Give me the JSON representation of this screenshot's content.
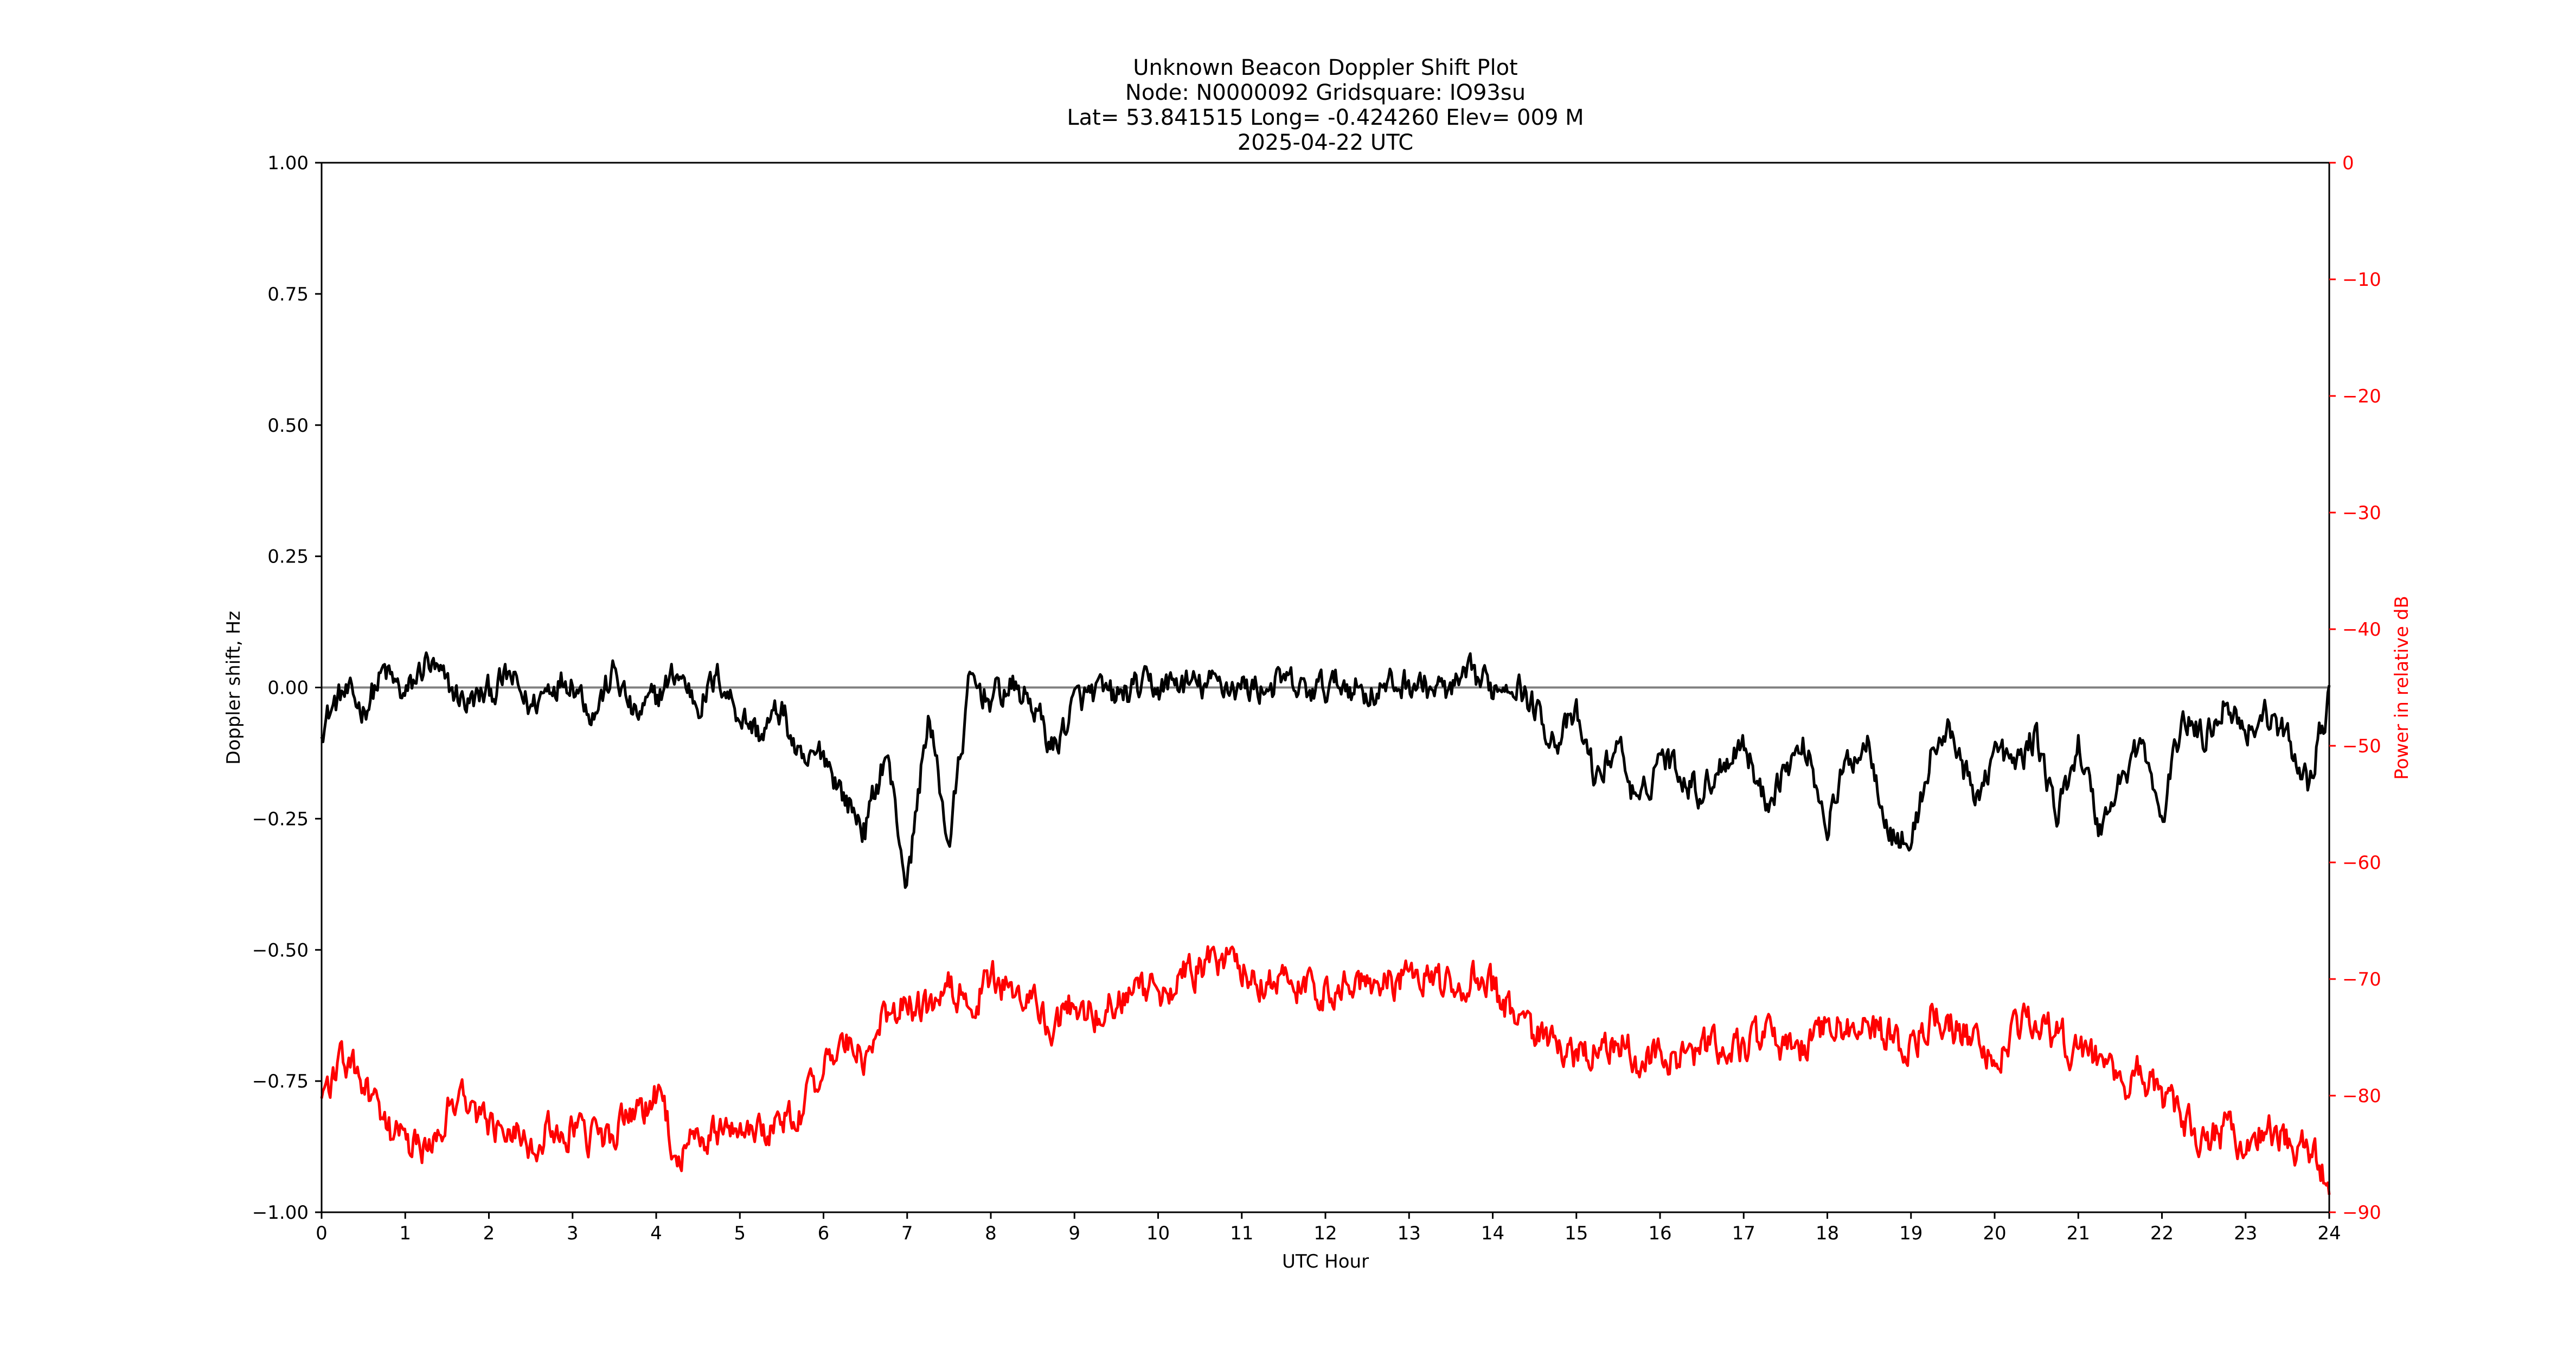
{
  "chart_data": {
    "type": "line",
    "title_lines": [
      "Unknown Beacon Doppler Shift Plot",
      "Node:  N0000092     Gridsquare:  IO93su",
      "Lat= 53.841515    Long= -0.424260    Elev= 009 M",
      "2025-04-22  UTC"
    ],
    "xlabel": "UTC Hour",
    "ylabel": "Doppler shift, Hz",
    "y2label": "Power in relative dB",
    "xlim": [
      0,
      24
    ],
    "ylim": [
      -1.0,
      1.0
    ],
    "y2lim": [
      -90,
      0
    ],
    "xticks": [
      "0",
      "1",
      "2",
      "3",
      "4",
      "5",
      "6",
      "7",
      "8",
      "9",
      "10",
      "11",
      "12",
      "13",
      "14",
      "15",
      "16",
      "17",
      "18",
      "19",
      "20",
      "21",
      "22",
      "23",
      "24"
    ],
    "yticks": [
      "1.00",
      "0.75",
      "0.50",
      "0.25",
      "0.00",
      "−0.25",
      "−0.50",
      "−0.75",
      "−1.00"
    ],
    "y2ticks": [
      "0",
      "−10",
      "−20",
      "−30",
      "−40",
      "−50",
      "−60",
      "−70",
      "−80",
      "−90"
    ],
    "reference_line_y": 0.0,
    "colors": {
      "doppler": "#000000",
      "power": "#ff0000",
      "right_axis": "#ff0000",
      "reference": "#808080"
    },
    "series": [
      {
        "axis": "left",
        "color": "#000000",
        "x": [
          0,
          0.25,
          0.5,
          0.75,
          1,
          1.25,
          1.5,
          1.75,
          2,
          2.25,
          2.5,
          2.75,
          3,
          3.25,
          3.5,
          3.75,
          4,
          4.25,
          4.5,
          4.75,
          5,
          5.25,
          5.5,
          5.75,
          6,
          6.25,
          6.5,
          6.75,
          7,
          7.25,
          7.5,
          7.75,
          8,
          8.25,
          8.5,
          8.75,
          9,
          9.25,
          9.5,
          9.75,
          10,
          10.25,
          10.5,
          10.75,
          11,
          11.25,
          11.5,
          11.75,
          12,
          12.25,
          12.5,
          12.75,
          13,
          13.25,
          13.5,
          13.75,
          14,
          14.25,
          14.5,
          14.75,
          15,
          15.25,
          15.5,
          15.75,
          16,
          16.25,
          16.5,
          16.75,
          17,
          17.25,
          17.5,
          17.75,
          18,
          18.25,
          18.5,
          18.75,
          19,
          19.25,
          19.5,
          19.75,
          20,
          20.25,
          20.5,
          20.75,
          21,
          21.25,
          21.5,
          21.75,
          22,
          22.25,
          22.5,
          22.75,
          23,
          23.25,
          23.5,
          23.75,
          24
        ],
        "values": [
          -0.07,
          -0.01,
          -0.04,
          0.03,
          -0.02,
          0.05,
          0.0,
          -0.03,
          -0.01,
          0.02,
          -0.04,
          0.01,
          0.02,
          -0.05,
          0.03,
          -0.06,
          -0.02,
          0.03,
          -0.03,
          0.02,
          -0.05,
          -0.09,
          -0.04,
          -0.16,
          -0.12,
          -0.21,
          -0.27,
          -0.12,
          -0.38,
          -0.05,
          -0.3,
          0.01,
          -0.02,
          0.0,
          -0.03,
          -0.12,
          -0.03,
          -0.01,
          -0.02,
          0.0,
          0.0,
          0.01,
          0.0,
          0.01,
          0.0,
          0.0,
          0.01,
          -0.01,
          0.0,
          0.01,
          -0.01,
          0.0,
          0.01,
          0.0,
          -0.01,
          0.02,
          0.0,
          0.02,
          -0.04,
          -0.1,
          -0.06,
          -0.18,
          -0.1,
          -0.24,
          -0.12,
          -0.16,
          -0.2,
          -0.14,
          -0.1,
          -0.22,
          -0.15,
          -0.11,
          -0.26,
          -0.14,
          -0.1,
          -0.28,
          -0.3,
          -0.12,
          -0.08,
          -0.22,
          -0.12,
          -0.15,
          -0.09,
          -0.25,
          -0.1,
          -0.27,
          -0.18,
          -0.1,
          -0.26,
          -0.05,
          -0.1,
          -0.02,
          -0.08,
          -0.05,
          -0.1,
          -0.18,
          -0.02
        ],
        "noise": 0.035
      },
      {
        "axis": "right",
        "color": "#ff0000",
        "x": [
          0,
          0.25,
          0.5,
          0.75,
          1,
          1.25,
          1.5,
          1.75,
          2,
          2.25,
          2.5,
          2.75,
          3,
          3.25,
          3.5,
          3.75,
          4,
          4.25,
          4.5,
          4.75,
          5,
          5.25,
          5.5,
          5.75,
          6,
          6.25,
          6.5,
          6.75,
          7,
          7.25,
          7.5,
          7.75,
          8,
          8.25,
          8.5,
          8.75,
          9,
          9.25,
          9.5,
          9.75,
          10,
          10.25,
          10.5,
          10.75,
          11,
          11.25,
          11.5,
          11.75,
          12,
          12.25,
          12.5,
          12.75,
          13,
          13.25,
          13.5,
          13.75,
          14,
          14.25,
          14.5,
          14.75,
          15,
          15.25,
          15.5,
          15.75,
          16,
          16.25,
          16.5,
          16.75,
          17,
          17.25,
          17.5,
          17.75,
          18,
          18.25,
          18.5,
          18.75,
          19,
          19.25,
          19.5,
          19.75,
          20,
          20.25,
          20.5,
          20.75,
          21,
          21.25,
          21.5,
          21.75,
          22,
          22.25,
          22.5,
          22.75,
          23,
          23.25,
          23.5,
          23.75,
          24
        ],
        "values": [
          -80,
          -77,
          -79,
          -83,
          -84,
          -85,
          -81,
          -80,
          -83,
          -82,
          -84,
          -83,
          -83,
          -84,
          -83,
          -82,
          -80,
          -85,
          -84,
          -83,
          -82,
          -83,
          -82,
          -81,
          -78,
          -75,
          -77,
          -73,
          -72,
          -73,
          -71,
          -72,
          -70,
          -71,
          -72,
          -74,
          -72,
          -73,
          -72,
          -71,
          -71,
          -70,
          -69,
          -68,
          -69,
          -70,
          -70,
          -71,
          -71,
          -70,
          -70,
          -70,
          -70,
          -70,
          -71,
          -70,
          -71,
          -73,
          -75,
          -76,
          -77,
          -76,
          -75,
          -77,
          -76,
          -77,
          -76,
          -76,
          -76,
          -75,
          -76,
          -76,
          -74,
          -74,
          -74,
          -75,
          -76,
          -73,
          -74,
          -75,
          -77,
          -74,
          -74,
          -75,
          -76,
          -77,
          -79,
          -78,
          -80,
          -82,
          -84,
          -83,
          -84,
          -83,
          -84,
          -85,
          -87
        ],
        "noise": 1.8
      }
    ]
  }
}
